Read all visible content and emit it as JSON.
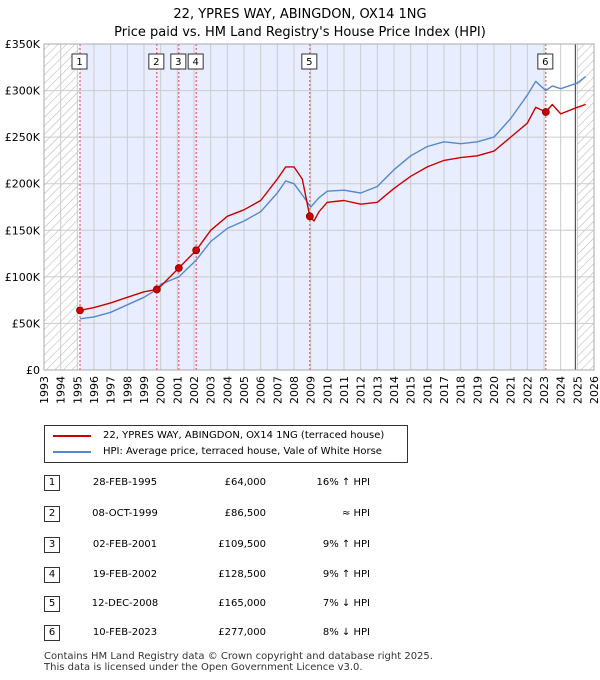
{
  "title": {
    "line1": "22, YPRES WAY, ABINGDON, OX14 1NG",
    "line2": "Price paid vs. HM Land Registry's House Price Index (HPI)"
  },
  "colors": {
    "property": "#cc0000",
    "hpi": "#5588cc",
    "shade": "#e8eeff",
    "grid": "#cccccc",
    "hatch": "#bbbbbb"
  },
  "chart_data": {
    "type": "line",
    "title": "Price paid vs. HM Land Registry's House Price Index (HPI)",
    "xlim": [
      1993,
      2026
    ],
    "ylim": [
      0,
      350000
    ],
    "x_ticks": [
      1993,
      1994,
      1995,
      1996,
      1997,
      1998,
      1999,
      2000,
      2001,
      2002,
      2003,
      2004,
      2005,
      2006,
      2007,
      2008,
      2009,
      2010,
      2011,
      2012,
      2013,
      2014,
      2015,
      2016,
      2017,
      2018,
      2019,
      2020,
      2021,
      2022,
      2023,
      2024,
      2025,
      2026
    ],
    "y_ticks": [
      {
        "value": 0,
        "label": "£0"
      },
      {
        "value": 50000,
        "label": "£50K"
      },
      {
        "value": 100000,
        "label": "£100K"
      },
      {
        "value": 150000,
        "label": "£150K"
      },
      {
        "value": 200000,
        "label": "£200K"
      },
      {
        "value": 250000,
        "label": "£250K"
      },
      {
        "value": 300000,
        "label": "£300K"
      },
      {
        "value": 350000,
        "label": "£350K"
      }
    ],
    "grid": true,
    "hatched_before": 1995.16,
    "hatched_after": 2025.0,
    "shaded_start": 1995.16,
    "shaded_end": 2023.11,
    "series": [
      {
        "name": "22, YPRES WAY, ABINGDON, OX14 1NG (terraced house)",
        "color": "#cc0000",
        "x": [
          1995.16,
          1996,
          1997,
          1998,
          1999,
          1999.77,
          2000,
          2001.09,
          2002.13,
          2003,
          2004,
          2005,
          2006,
          2007,
          2007.5,
          2008,
          2008.5,
          2008.95,
          2009.2,
          2009.5,
          2010,
          2011,
          2012,
          2013,
          2014,
          2015,
          2016,
          2017,
          2018,
          2019,
          2020,
          2021,
          2022,
          2022.5,
          2023.11,
          2023.5,
          2024,
          2025,
          2025.5
        ],
        "values": [
          64000,
          67000,
          72000,
          78000,
          84000,
          86500,
          90000,
          109500,
          128500,
          150000,
          165000,
          172000,
          182000,
          205000,
          218000,
          218000,
          205000,
          165000,
          160000,
          170000,
          180000,
          182000,
          178000,
          180000,
          195000,
          208000,
          218000,
          225000,
          228000,
          230000,
          235000,
          250000,
          265000,
          282000,
          277000,
          285000,
          275000,
          282000,
          285000
        ]
      },
      {
        "name": "HPI: Average price, terraced house, Vale of White Horse",
        "color": "#5588cc",
        "x": [
          1995.16,
          1996,
          1997,
          1998,
          1999,
          1999.77,
          2000,
          2001.09,
          2002.13,
          2003,
          2004,
          2005,
          2006,
          2007,
          2007.5,
          2008,
          2008.5,
          2009,
          2009.5,
          2010,
          2011,
          2012,
          2013,
          2014,
          2015,
          2016,
          2017,
          2018,
          2019,
          2020,
          2021,
          2022,
          2022.5,
          2023.11,
          2023.5,
          2024,
          2025,
          2025.5
        ],
        "values": [
          55000,
          57000,
          62000,
          70000,
          78000,
          86500,
          92000,
          100000,
          118000,
          138000,
          152000,
          160000,
          170000,
          190000,
          203000,
          200000,
          188000,
          175000,
          185000,
          192000,
          193000,
          190000,
          197000,
          215000,
          230000,
          240000,
          245000,
          243000,
          245000,
          250000,
          270000,
          295000,
          310000,
          300000,
          305000,
          302000,
          308000,
          315000
        ]
      }
    ],
    "markers": [
      {
        "n": "1",
        "x": 1995.16,
        "y": 64000
      },
      {
        "n": "2",
        "x": 1999.77,
        "y": 86500
      },
      {
        "n": "3",
        "x": 2001.09,
        "y": 109500
      },
      {
        "n": "4",
        "x": 2002.13,
        "y": 128500
      },
      {
        "n": "5",
        "x": 2008.95,
        "y": 165000
      },
      {
        "n": "6",
        "x": 2023.11,
        "y": 277000
      }
    ],
    "legend": [
      "22, YPRES WAY, ABINGDON, OX14 1NG (terraced house)",
      "HPI: Average price, terraced house, Vale of White Horse"
    ]
  },
  "transactions": [
    {
      "n": "1",
      "date": "28-FEB-1995",
      "price": "£64,000",
      "hpi": "16% ↑ HPI"
    },
    {
      "n": "2",
      "date": "08-OCT-1999",
      "price": "£86,500",
      "hpi": "≈ HPI"
    },
    {
      "n": "3",
      "date": "02-FEB-2001",
      "price": "£109,500",
      "hpi": "9% ↑ HPI"
    },
    {
      "n": "4",
      "date": "19-FEB-2002",
      "price": "£128,500",
      "hpi": "9% ↑ HPI"
    },
    {
      "n": "5",
      "date": "12-DEC-2008",
      "price": "£165,000",
      "hpi": "7% ↓ HPI"
    },
    {
      "n": "6",
      "date": "10-FEB-2023",
      "price": "£277,000",
      "hpi": "8% ↓ HPI"
    }
  ],
  "footer": {
    "line1": "Contains HM Land Registry data © Crown copyright and database right 2025.",
    "line2": "This data is licensed under the Open Government Licence v3.0."
  }
}
